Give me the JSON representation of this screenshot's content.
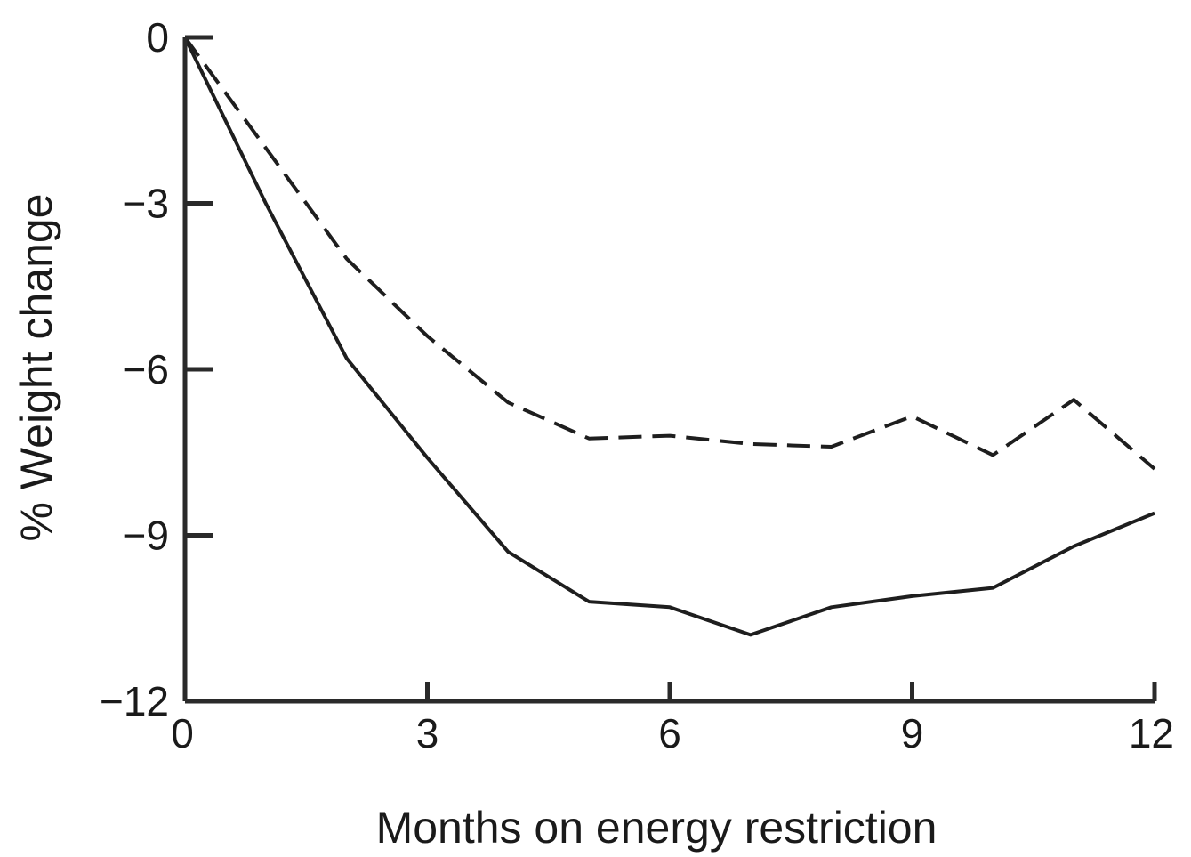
{
  "chart_data": {
    "type": "line",
    "title": "",
    "xlabel": "Months on energy restriction",
    "ylabel": "% Weight change",
    "xlim": [
      0,
      12
    ],
    "ylim": [
      -12,
      0
    ],
    "xticks": [
      0,
      3,
      6,
      9,
      12
    ],
    "yticks": [
      0,
      -3,
      -6,
      -9,
      -12
    ],
    "xtick_labels": [
      "0",
      "3",
      "6",
      "9",
      "12"
    ],
    "ytick_labels": [
      "0",
      "−3",
      "−6",
      "−9",
      "−12"
    ],
    "grid": false,
    "legend": "none",
    "series": [
      {
        "style": "solid",
        "color": "#1e1e1e",
        "x": [
          0,
          1,
          2,
          3,
          4,
          5,
          6,
          7,
          8,
          9,
          10,
          11,
          12
        ],
        "y": [
          0,
          -3.0,
          -5.8,
          -7.6,
          -9.3,
          -10.2,
          -10.3,
          -10.8,
          -10.3,
          -10.1,
          -9.95,
          -9.2,
          -8.6
        ]
      },
      {
        "style": "dashed",
        "color": "#1e1e1e",
        "x": [
          0,
          1,
          2,
          3,
          4,
          5,
          6,
          7,
          8,
          9,
          10,
          11,
          12
        ],
        "y": [
          0,
          -2.0,
          -4.0,
          -5.4,
          -6.6,
          -7.25,
          -7.2,
          -7.35,
          -7.4,
          -6.85,
          -7.55,
          -6.55,
          -7.8
        ]
      }
    ]
  }
}
